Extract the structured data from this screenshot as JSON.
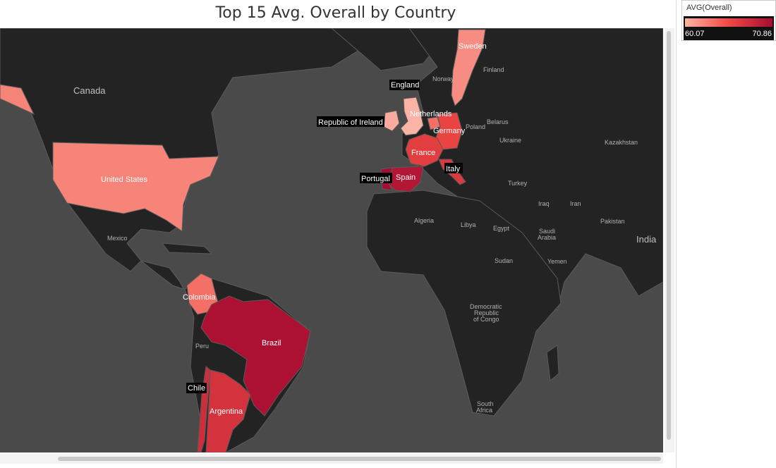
{
  "title": "Top 15 Avg. Overall by Country",
  "legend": {
    "title": "AVG(Overall)",
    "min": "60.07",
    "max": "70.86"
  },
  "colors": {
    "low": "#fbb3a5",
    "mid": "#f04a43",
    "high": "#a70d33",
    "land": "#232323",
    "ocean": "#4a4a4a"
  },
  "countries": [
    {
      "name": "Sweden",
      "avg_overall": 62.0
    },
    {
      "name": "England",
      "avg_overall": 60.07
    },
    {
      "name": "Netherlands",
      "avg_overall": 63.5
    },
    {
      "name": "Republic of Ireland",
      "avg_overall": 60.5
    },
    {
      "name": "Germany",
      "avg_overall": 66.0
    },
    {
      "name": "France",
      "avg_overall": 66.5
    },
    {
      "name": "Italy",
      "avg_overall": 67.0
    },
    {
      "name": "Spain",
      "avg_overall": 70.0
    },
    {
      "name": "Portugal",
      "avg_overall": 70.86
    },
    {
      "name": "United States",
      "avg_overall": 62.5
    },
    {
      "name": "Colombia",
      "avg_overall": 63.5
    },
    {
      "name": "Brazil",
      "avg_overall": 70.5
    },
    {
      "name": "Chile",
      "avg_overall": 68.0
    },
    {
      "name": "Argentina",
      "avg_overall": 67.5
    },
    {
      "name": "Mexico",
      "avg_overall": null
    }
  ],
  "background_labels": [
    "Canada",
    "Norway",
    "Finland",
    "Poland",
    "Belarus",
    "Ukraine",
    "Kazakhstan",
    "Turkey",
    "Iraq",
    "Iran",
    "Algeria",
    "Libya",
    "Egypt",
    "Saudi",
    "Arabia",
    "Pakistan",
    "India",
    "Sudan",
    "Yemen",
    "Democratic",
    "Republic",
    "of Congo",
    "Peru",
    "South",
    "Africa"
  ]
}
